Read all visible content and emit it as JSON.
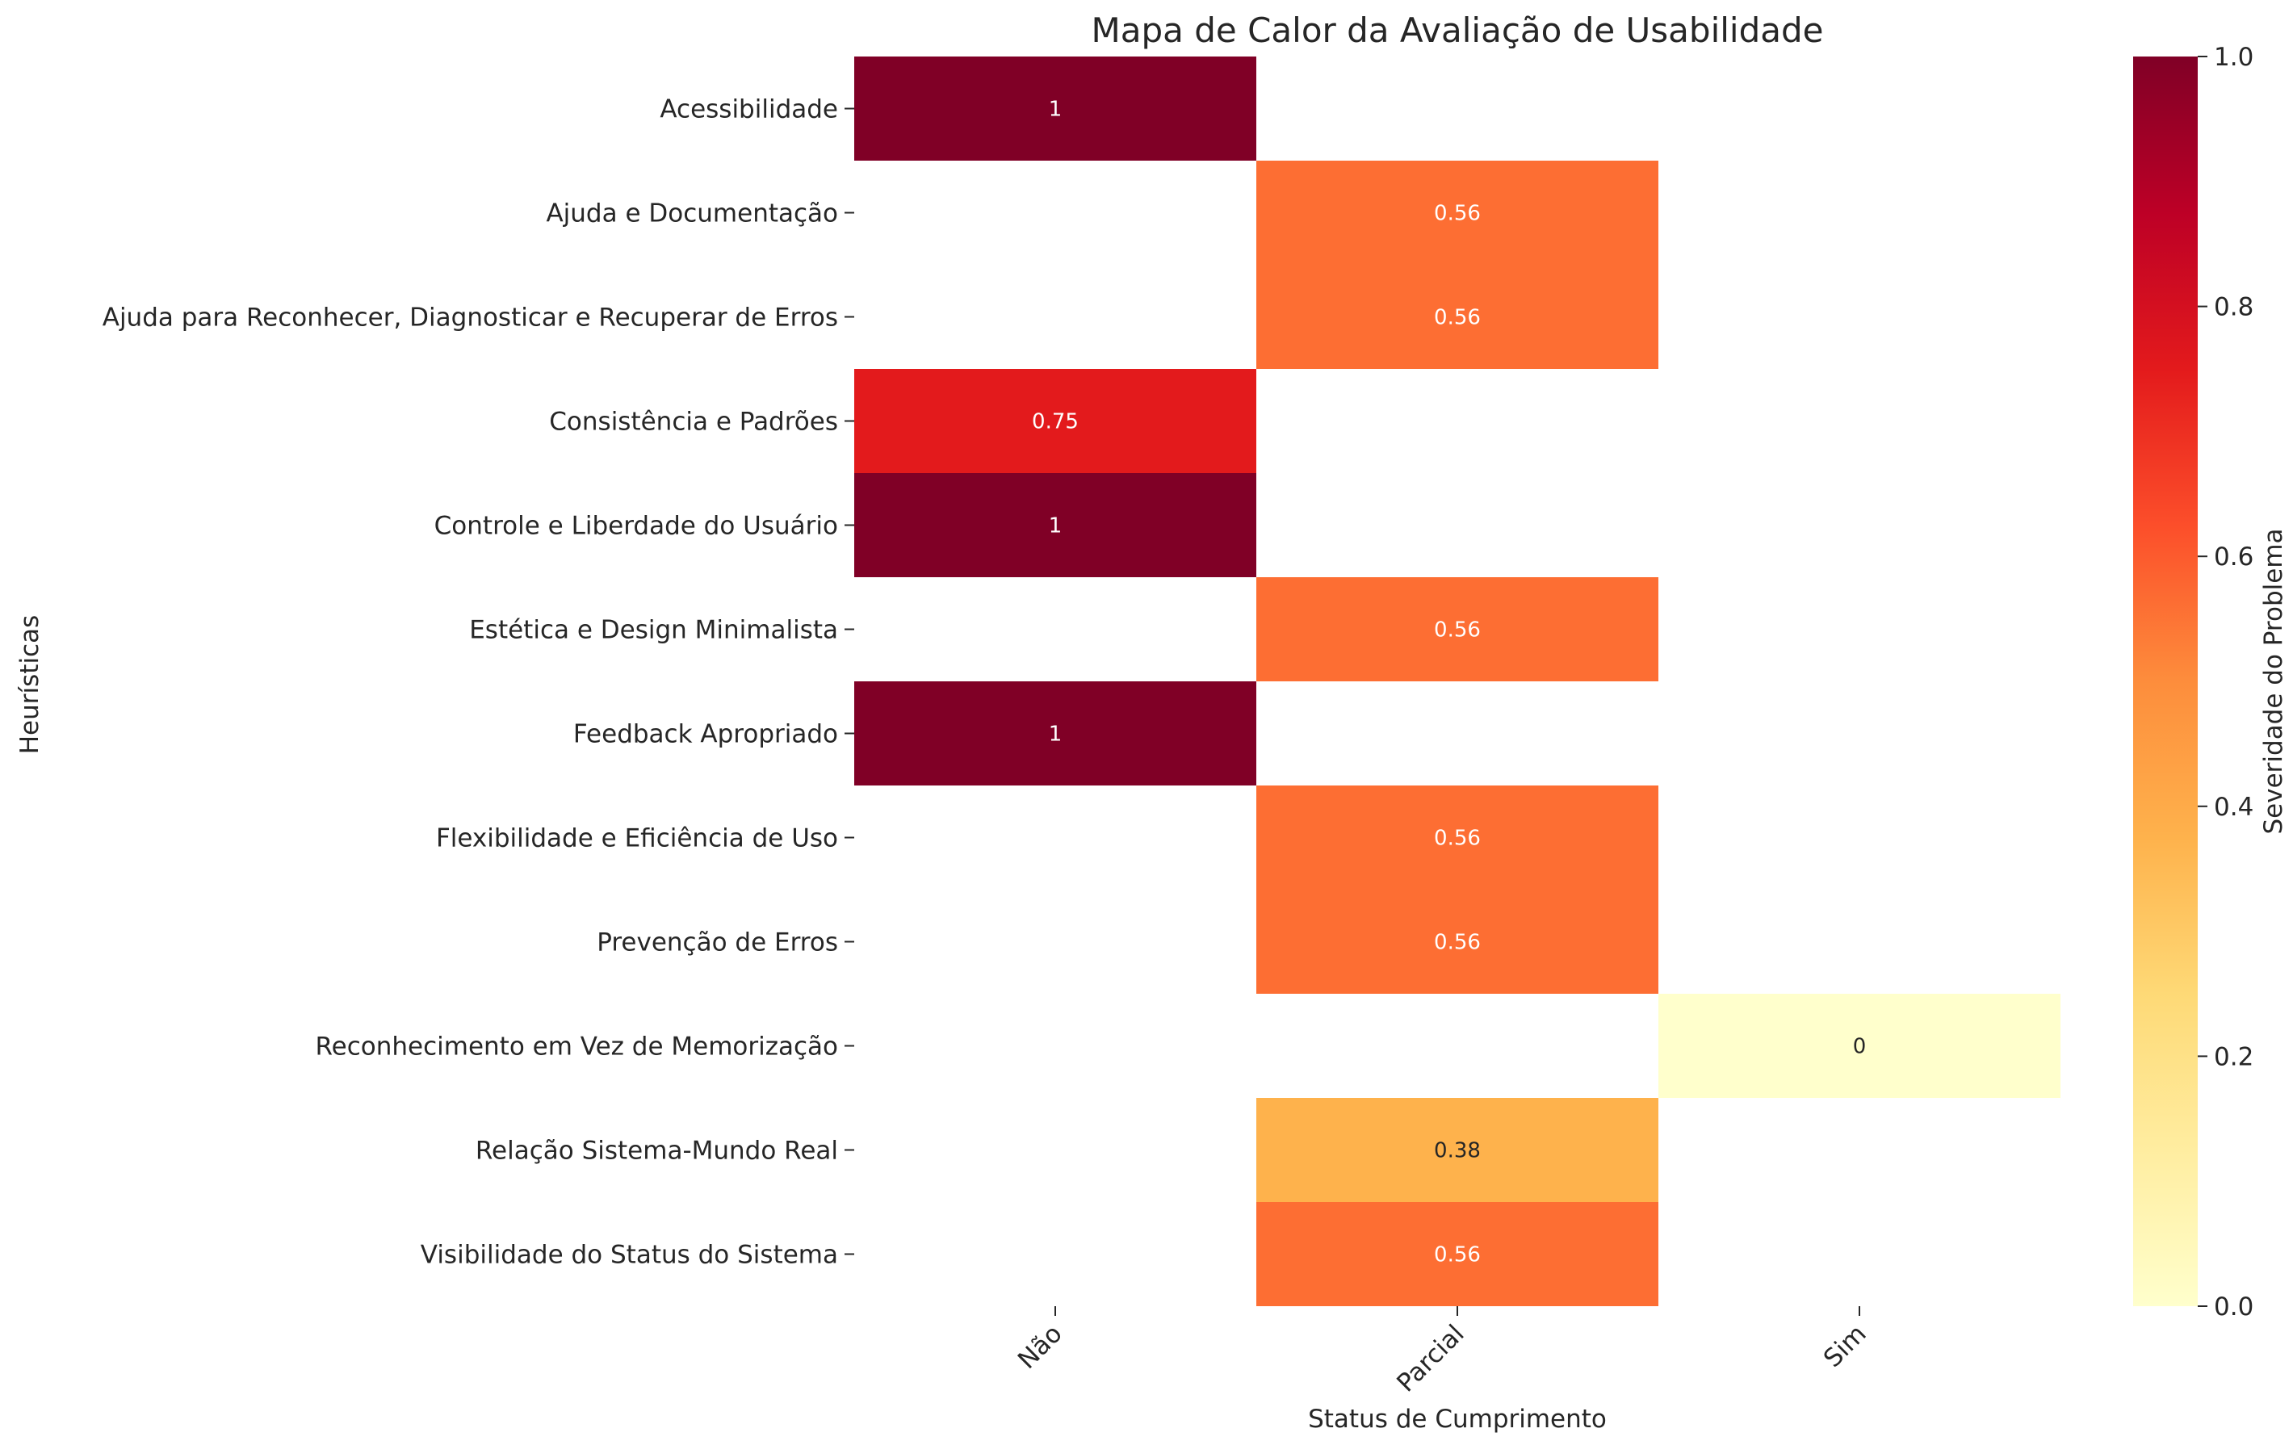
{
  "chart_data": {
    "type": "heatmap",
    "title": "Mapa de Calor da Avaliação de Usabilidade",
    "xlabel": "Status de Cumprimento",
    "ylabel": "Heurísticas",
    "colorbar_label": "Severidade do Problema",
    "x_categories": [
      "Não",
      "Parcial",
      "Sim"
    ],
    "y_categories": [
      "Acessibilidade",
      "Ajuda e Documentação",
      "Ajuda para Reconhecer, Diagnosticar e Recuperar de Erros",
      "Consistência e Padrões",
      "Controle e Liberdade do Usuário",
      "Estética e Design Minimalista",
      "Feedback Apropriado",
      "Flexibilidade e Eficiência de Uso",
      "Prevenção de Erros",
      "Reconhecimento em Vez de Memorização",
      "Relação Sistema-Mundo Real",
      "Visibilidade do Status do Sistema"
    ],
    "cells": [
      {
        "row": 0,
        "col": 0,
        "value": 1,
        "label": "1"
      },
      {
        "row": 1,
        "col": 1,
        "value": 0.5625,
        "label": "0.56"
      },
      {
        "row": 2,
        "col": 1,
        "value": 0.5625,
        "label": "0.56"
      },
      {
        "row": 3,
        "col": 0,
        "value": 0.75,
        "label": "0.75"
      },
      {
        "row": 4,
        "col": 0,
        "value": 1,
        "label": "1"
      },
      {
        "row": 5,
        "col": 1,
        "value": 0.5625,
        "label": "0.56"
      },
      {
        "row": 6,
        "col": 0,
        "value": 1,
        "label": "1"
      },
      {
        "row": 7,
        "col": 1,
        "value": 0.5625,
        "label": "0.56"
      },
      {
        "row": 8,
        "col": 1,
        "value": 0.5625,
        "label": "0.56"
      },
      {
        "row": 9,
        "col": 2,
        "value": 0,
        "label": "0"
      },
      {
        "row": 10,
        "col": 1,
        "value": 0.375,
        "label": "0.38"
      },
      {
        "row": 11,
        "col": 1,
        "value": 0.5625,
        "label": "0.56"
      }
    ],
    "colorbar": {
      "range": [
        0.0,
        1.0
      ],
      "ticks": [
        "0.0",
        "0.2",
        "0.4",
        "0.6",
        "0.8",
        "1.0"
      ],
      "colormap": "YlOrRd",
      "stops": [
        "#ffffcc",
        "#ffeda0",
        "#fed976",
        "#feb24c",
        "#fd8d3c",
        "#fc4e2a",
        "#e31a1c",
        "#bd0026",
        "#800026"
      ]
    },
    "grid": false
  }
}
